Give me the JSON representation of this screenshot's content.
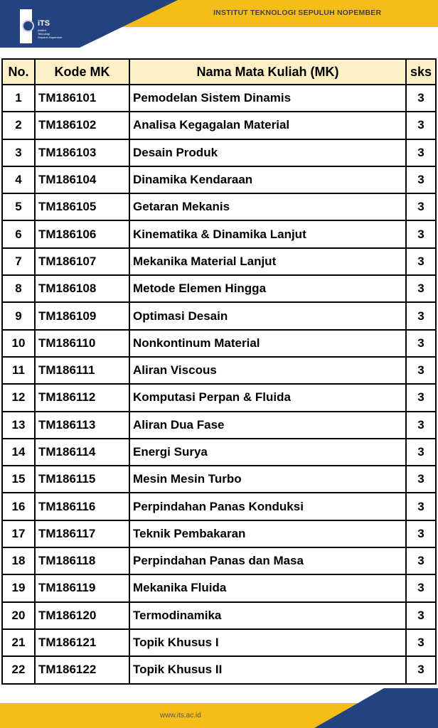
{
  "header": {
    "institution": "INSTITUT TEKNOLOGI SEPULUH NOPEMBER",
    "logo_text": "ITS",
    "logo_sub": "Institut Teknologi Sepuluh Nopember",
    "colors": {
      "blue": "#24427f",
      "yellow": "#f5bd17",
      "header_row": "#fdf0c6"
    }
  },
  "table": {
    "columns": [
      "No.",
      "Kode MK",
      "Nama Mata Kuliah (MK)",
      "sks"
    ],
    "rows": [
      [
        "1",
        "TM186101",
        "Pemodelan Sistem Dinamis",
        "3"
      ],
      [
        "2",
        "TM186102",
        "Analisa Kegagalan Material",
        "3"
      ],
      [
        "3",
        "TM186103",
        "Desain Produk",
        "3"
      ],
      [
        "4",
        "TM186104",
        "Dinamika Kendaraan",
        "3"
      ],
      [
        "5",
        "TM186105",
        "Getaran Mekanis",
        "3"
      ],
      [
        "6",
        "TM186106",
        "Kinematika & Dinamika Lanjut",
        "3"
      ],
      [
        "7",
        "TM186107",
        "Mekanika Material Lanjut",
        "3"
      ],
      [
        "8",
        "TM186108",
        "Metode Elemen Hingga",
        "3"
      ],
      [
        "9",
        "TM186109",
        "Optimasi Desain",
        "3"
      ],
      [
        "10",
        "TM186110",
        "Nonkontinum Material",
        "3"
      ],
      [
        "11",
        "TM186111",
        "Aliran Viscous",
        "3"
      ],
      [
        "12",
        "TM186112",
        "Komputasi Perpan & Fluida",
        "3"
      ],
      [
        "13",
        "TM186113",
        "Aliran Dua Fase",
        "3"
      ],
      [
        "14",
        "TM186114",
        "Energi Surya",
        "3"
      ],
      [
        "15",
        "TM186115",
        "Mesin Mesin Turbo",
        "3"
      ],
      [
        "16",
        "TM186116",
        "Perpindahan Panas Konduksi",
        "3"
      ],
      [
        "17",
        "TM186117",
        "Teknik Pembakaran",
        "3"
      ],
      [
        "18",
        "TM186118",
        "Perpindahan Panas dan Masa",
        "3"
      ],
      [
        "19",
        "TM186119",
        "Mekanika Fluida",
        "3"
      ],
      [
        "20",
        "TM186120",
        "Termodinamika",
        "3"
      ],
      [
        "21",
        "TM186121",
        "Topik Khusus I",
        "3"
      ],
      [
        "22",
        "TM186122",
        "Topik Khusus II",
        "3"
      ]
    ]
  },
  "footer": {
    "url": "www.its.ac.id"
  }
}
